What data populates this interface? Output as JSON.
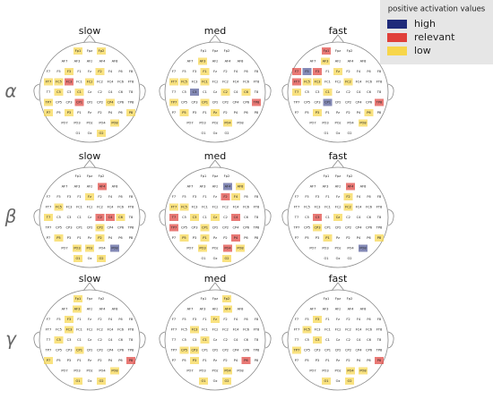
{
  "legend": {
    "title": "positive activation values",
    "items": [
      {
        "label": "high",
        "color": "#1f2a7a"
      },
      {
        "label": "relevant",
        "color": "#e0403a"
      },
      {
        "label": "low",
        "color": "#f7d64a"
      }
    ]
  },
  "rows": [
    "α",
    "β",
    "γ"
  ],
  "columns": [
    "slow",
    "med",
    "fast"
  ],
  "electrode_rows": [
    [
      "Fp1",
      "Fpz",
      "Fp2"
    ],
    [
      "AF7",
      "AF3",
      "AFz",
      "AF4",
      "AF8"
    ],
    [
      "F7",
      "F5",
      "F3",
      "F1",
      "Fz",
      "F2",
      "F4",
      "F6",
      "F8"
    ],
    [
      "FT7",
      "FC5",
      "FC3",
      "FC1",
      "FCz",
      "FC2",
      "FC4",
      "FC6",
      "FT8"
    ],
    [
      "T7",
      "C5",
      "C3",
      "C1",
      "Cz",
      "C2",
      "C4",
      "C6",
      "T8"
    ],
    [
      "TP7",
      "CP5",
      "CP3",
      "CP1",
      "CPz",
      "CP2",
      "CP4",
      "CP6",
      "TP8"
    ],
    [
      "P7",
      "P5",
      "P3",
      "P1",
      "Pz",
      "P2",
      "P4",
      "P6",
      "P8"
    ],
    [
      "PO7",
      "PO3",
      "POz",
      "PO4",
      "PO8"
    ],
    [
      "O1",
      "Oz",
      "O2"
    ]
  ],
  "panels": [
    [
      [
        0,
        0,
        2
      ],
      [
        0,
        2,
        2
      ],
      [
        2,
        2,
        2
      ],
      [
        2,
        5,
        2
      ],
      [
        3,
        0,
        2
      ],
      [
        3,
        1,
        2
      ],
      [
        3,
        2,
        1
      ],
      [
        3,
        4,
        2
      ],
      [
        4,
        1,
        2
      ],
      [
        4,
        3,
        2
      ],
      [
        5,
        0,
        2
      ],
      [
        5,
        3,
        1
      ],
      [
        5,
        6,
        2
      ],
      [
        6,
        0,
        2
      ],
      [
        6,
        2,
        2
      ],
      [
        6,
        8,
        2
      ],
      [
        8,
        2,
        2
      ],
      [
        7,
        4,
        2
      ]
    ],
    [
      [
        1,
        1,
        2
      ],
      [
        2,
        3,
        2
      ],
      [
        3,
        0,
        2
      ],
      [
        3,
        1,
        2
      ],
      [
        3,
        3,
        2
      ],
      [
        4,
        2,
        0
      ],
      [
        4,
        5,
        2
      ],
      [
        4,
        7,
        2
      ],
      [
        5,
        0,
        2
      ],
      [
        5,
        3,
        2
      ],
      [
        5,
        8,
        1
      ],
      [
        6,
        1,
        2
      ],
      [
        6,
        4,
        2
      ],
      [
        7,
        3,
        2
      ]
    ],
    [
      [
        0,
        0,
        1
      ],
      [
        1,
        1,
        2
      ],
      [
        2,
        0,
        1
      ],
      [
        2,
        1,
        0
      ],
      [
        2,
        2,
        1
      ],
      [
        2,
        4,
        2
      ],
      [
        3,
        0,
        1
      ],
      [
        3,
        1,
        2
      ],
      [
        3,
        2,
        2
      ],
      [
        3,
        5,
        2
      ],
      [
        4,
        0,
        2
      ],
      [
        4,
        3,
        2
      ],
      [
        5,
        3,
        0
      ],
      [
        5,
        8,
        1
      ],
      [
        6,
        2,
        2
      ],
      [
        6,
        7,
        2
      ],
      [
        7,
        4,
        2
      ]
    ],
    [
      [
        1,
        3,
        1
      ],
      [
        2,
        4,
        2
      ],
      [
        3,
        1,
        2
      ],
      [
        4,
        0,
        2
      ],
      [
        4,
        5,
        1
      ],
      [
        4,
        6,
        1
      ],
      [
        4,
        7,
        2
      ],
      [
        5,
        5,
        2
      ],
      [
        6,
        1,
        2
      ],
      [
        6,
        5,
        2
      ],
      [
        7,
        1,
        2
      ],
      [
        7,
        2,
        2
      ],
      [
        7,
        4,
        0
      ],
      [
        8,
        0,
        2
      ],
      [
        8,
        2,
        2
      ]
    ],
    [
      [
        1,
        3,
        0
      ],
      [
        1,
        4,
        2
      ],
      [
        2,
        5,
        1
      ],
      [
        2,
        6,
        2
      ],
      [
        3,
        0,
        2
      ],
      [
        3,
        1,
        2
      ],
      [
        4,
        0,
        1
      ],
      [
        4,
        2,
        2
      ],
      [
        4,
        4,
        2
      ],
      [
        4,
        6,
        1
      ],
      [
        5,
        0,
        1
      ],
      [
        5,
        3,
        2
      ],
      [
        6,
        1,
        2
      ],
      [
        6,
        3,
        2
      ],
      [
        6,
        6,
        1
      ],
      [
        7,
        1,
        2
      ],
      [
        7,
        3,
        1
      ],
      [
        7,
        4,
        2
      ],
      [
        8,
        2,
        2
      ]
    ],
    [
      [
        1,
        3,
        1
      ],
      [
        2,
        5,
        2
      ],
      [
        3,
        5,
        2
      ],
      [
        4,
        2,
        1
      ],
      [
        4,
        4,
        2
      ],
      [
        5,
        2,
        2
      ],
      [
        6,
        3,
        2
      ],
      [
        7,
        4,
        0
      ],
      [
        6,
        8,
        2
      ]
    ],
    [
      [
        0,
        0,
        2
      ],
      [
        1,
        1,
        2
      ],
      [
        2,
        2,
        2
      ],
      [
        3,
        2,
        2
      ],
      [
        4,
        1,
        2
      ],
      [
        5,
        3,
        2
      ],
      [
        6,
        0,
        2
      ],
      [
        6,
        8,
        1
      ],
      [
        8,
        0,
        2
      ],
      [
        8,
        2,
        2
      ],
      [
        7,
        4,
        2
      ]
    ],
    [
      [
        0,
        2,
        2
      ],
      [
        1,
        3,
        2
      ],
      [
        2,
        4,
        2
      ],
      [
        3,
        2,
        2
      ],
      [
        4,
        3,
        2
      ],
      [
        5,
        1,
        2
      ],
      [
        5,
        2,
        2
      ],
      [
        6,
        2,
        2
      ],
      [
        6,
        7,
        1
      ],
      [
        7,
        3,
        2
      ],
      [
        8,
        0,
        2
      ],
      [
        8,
        2,
        2
      ]
    ],
    [
      [
        2,
        2,
        2
      ],
      [
        3,
        1,
        2
      ],
      [
        4,
        2,
        2
      ],
      [
        5,
        0,
        2
      ],
      [
        6,
        8,
        1
      ],
      [
        7,
        3,
        2
      ],
      [
        8,
        0,
        2
      ],
      [
        8,
        2,
        2
      ],
      [
        7,
        4,
        2
      ]
    ]
  ]
}
